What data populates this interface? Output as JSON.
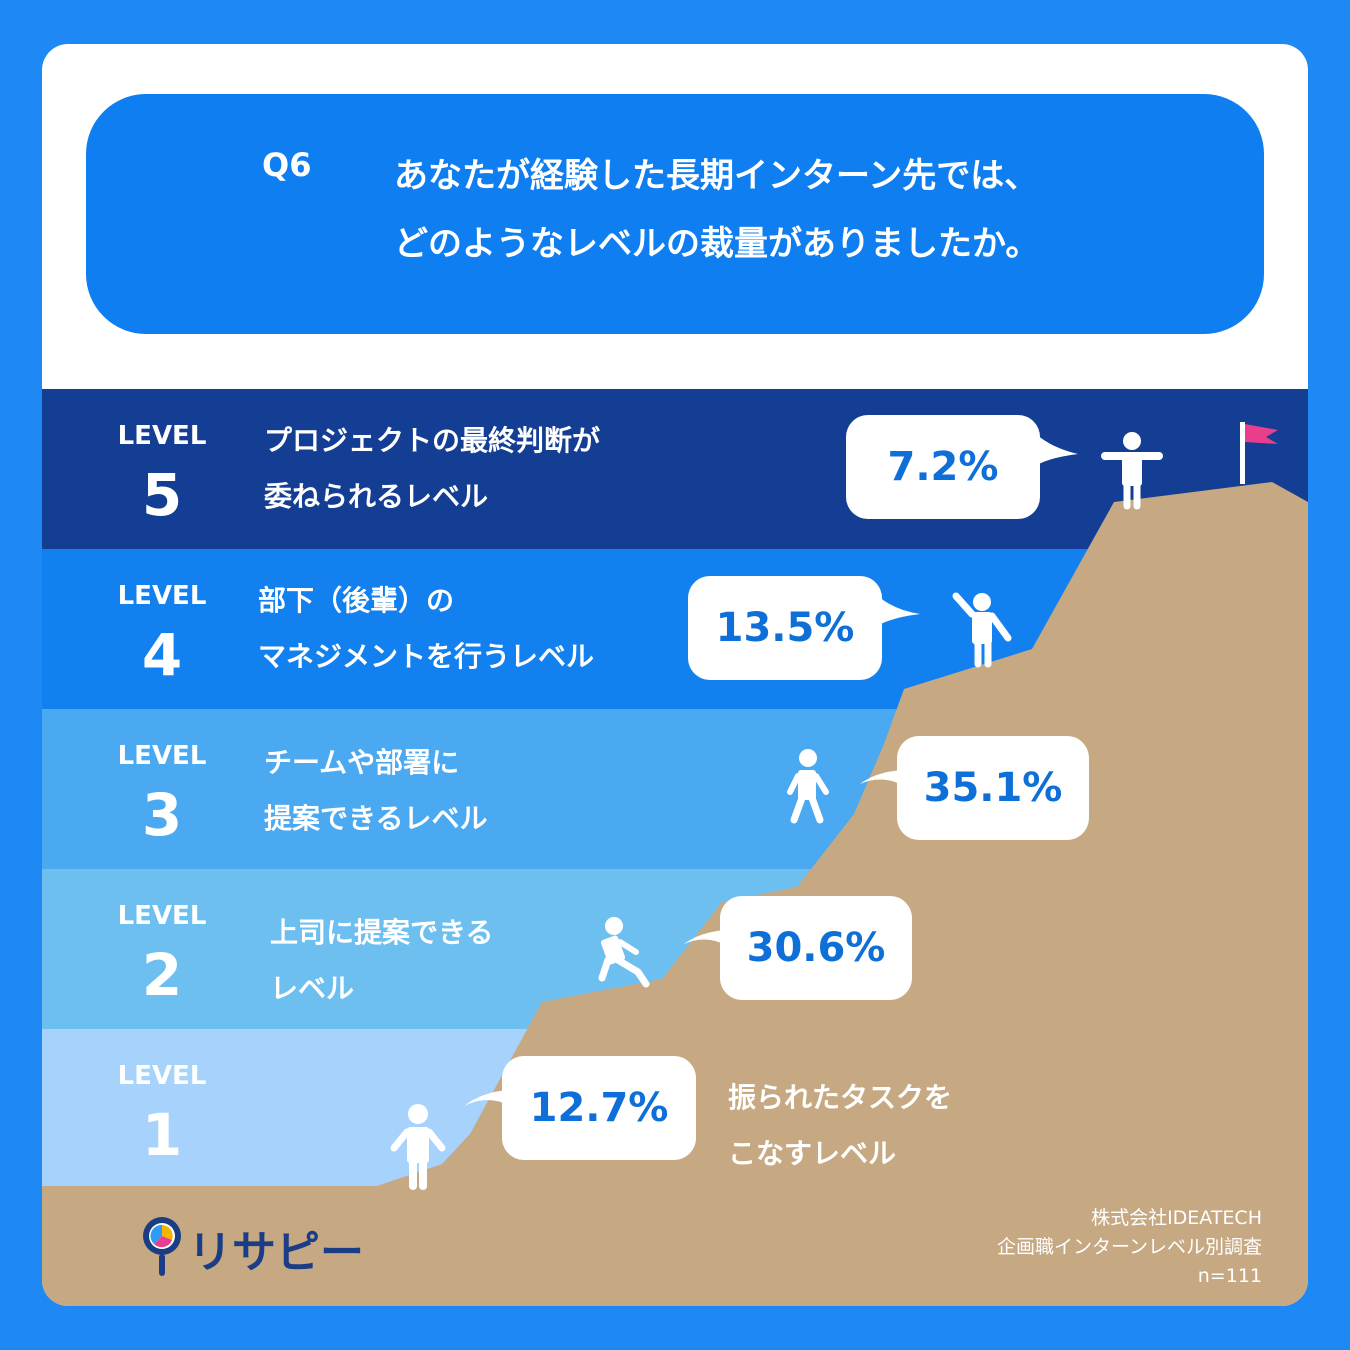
{
  "question": {
    "number": "Q6",
    "line1": "あなたが経験した長期インターン先では、",
    "line2": "どのようなレベルの裁量がありましたか。"
  },
  "level_word": "LEVEL",
  "colors": {
    "background": "#1e88f5",
    "question_box": "#0f7ef0",
    "level5": "#143d94",
    "level4": "#1280ee",
    "level3": "#4aa9f0",
    "level2": "#6dbff0",
    "level1": "#a6d2fb",
    "mountain": "#c6a982",
    "value_text": "#0f6fd8",
    "flag": "#e83e8c"
  },
  "chart_data": {
    "type": "bar",
    "categories": [
      "LEVEL 5",
      "LEVEL 4",
      "LEVEL 3",
      "LEVEL 2",
      "LEVEL 1"
    ],
    "levels": [
      {
        "num": "5",
        "desc_line1": "プロジェクトの最終判断が",
        "desc_line2": "委ねられるレベル",
        "value": 7.2,
        "label": "7.2%"
      },
      {
        "num": "4",
        "desc_line1": "部下（後輩）の",
        "desc_line2": "マネジメントを行うレベル",
        "value": 13.5,
        "label": "13.5%"
      },
      {
        "num": "3",
        "desc_line1": "チームや部署に",
        "desc_line2": "提案できるレベル",
        "value": 35.1,
        "label": "35.1%"
      },
      {
        "num": "2",
        "desc_line1": "上司に提案できる",
        "desc_line2": "レベル",
        "value": 30.6,
        "label": "30.6%"
      },
      {
        "num": "1",
        "desc_line1": "振られたタスクを",
        "desc_line2": "こなすレベル",
        "value": 12.7,
        "label": "12.7%"
      }
    ],
    "values": [
      7.2,
      13.5,
      35.1,
      30.6,
      12.7
    ],
    "unit": "%"
  },
  "credit": {
    "company": "株式会社IDEATECH",
    "survey": "企画職インターンレベル別調査",
    "n": "n=111"
  },
  "logo": {
    "text": "リサピー"
  }
}
